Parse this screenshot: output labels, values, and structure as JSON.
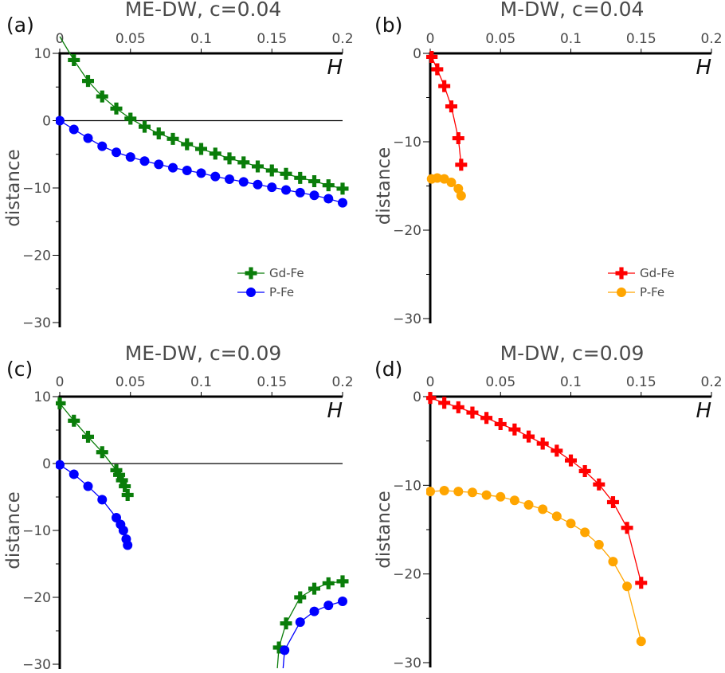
{
  "chart_data": [
    {
      "panel_label": "(a)",
      "title": "ME-DW, c=0.04",
      "type": "line",
      "xlabel": "H",
      "ylabel": "distance",
      "xlim": [
        0,
        0.2
      ],
      "ylim": [
        -30,
        10
      ],
      "xticks": [
        "0",
        "0.05",
        "0.1",
        "0.15",
        "0.2"
      ],
      "xtick_values": [
        0,
        0.05,
        0.1,
        0.15,
        0.2
      ],
      "yticks": [
        "10",
        "0",
        "−10",
        "−20",
        "−30"
      ],
      "ytick_values": [
        10,
        0,
        -10,
        -20,
        -30
      ],
      "zero_line": true,
      "legend_position": "lower-right",
      "series": [
        {
          "name": "Gd-Fe",
          "color": "#0a7d0a",
          "marker": "cross",
          "line_start": [
            0,
            12.5
          ],
          "x": [
            0.01,
            0.02,
            0.03,
            0.04,
            0.05,
            0.06,
            0.07,
            0.08,
            0.09,
            0.1,
            0.11,
            0.12,
            0.13,
            0.14,
            0.15,
            0.16,
            0.17,
            0.18,
            0.19,
            0.2
          ],
          "y": [
            9.0,
            5.9,
            3.6,
            1.8,
            0.3,
            -0.9,
            -1.9,
            -2.7,
            -3.5,
            -4.2,
            -4.9,
            -5.6,
            -6.2,
            -6.8,
            -7.4,
            -7.9,
            -8.5,
            -9.0,
            -9.6,
            -10.1
          ]
        },
        {
          "name": "P-Fe",
          "color": "#0000ff",
          "marker": "circle",
          "x": [
            0,
            0.01,
            0.02,
            0.03,
            0.04,
            0.05,
            0.06,
            0.07,
            0.08,
            0.09,
            0.1,
            0.11,
            0.12,
            0.13,
            0.14,
            0.15,
            0.16,
            0.17,
            0.18,
            0.19,
            0.2
          ],
          "y": [
            0,
            -1.3,
            -2.6,
            -3.8,
            -4.7,
            -5.4,
            -6.0,
            -6.5,
            -7.0,
            -7.4,
            -7.8,
            -8.3,
            -8.7,
            -9.1,
            -9.5,
            -9.9,
            -10.3,
            -10.7,
            -11.1,
            -11.6,
            -12.2
          ]
        }
      ]
    },
    {
      "panel_label": "(b)",
      "title": "M-DW, c=0.04",
      "type": "line",
      "xlabel": "H",
      "ylabel": "distance",
      "xlim": [
        0,
        0.2
      ],
      "ylim": [
        -30,
        0
      ],
      "xticks": [
        "0",
        "0.05",
        "0.1",
        "0.15",
        "0.2"
      ],
      "xtick_values": [
        0,
        0.05,
        0.1,
        0.15,
        0.2
      ],
      "yticks": [
        "0",
        "−10",
        "−20",
        "−30"
      ],
      "ytick_values": [
        0,
        -10,
        -20,
        -30
      ],
      "zero_line": false,
      "legend_position": "lower-right",
      "series": [
        {
          "name": "Gd-Fe",
          "color": "#ff0000",
          "marker": "cross",
          "x": [
            0.001,
            0.005,
            0.01,
            0.015,
            0.02,
            0.022
          ],
          "y": [
            -0.4,
            -1.8,
            -3.7,
            -6.0,
            -9.6,
            -12.6
          ]
        },
        {
          "name": "P-Fe",
          "color": "#ffa500",
          "marker": "circle",
          "x": [
            0.001,
            0.005,
            0.01,
            0.015,
            0.02,
            0.022
          ],
          "y": [
            -14.2,
            -14.1,
            -14.2,
            -14.6,
            -15.3,
            -16.1
          ]
        }
      ]
    },
    {
      "panel_label": "(c)",
      "title": "ME-DW, c=0.09",
      "type": "line",
      "xlabel": "H",
      "ylabel": "distance",
      "xlim": [
        0,
        0.2
      ],
      "ylim": [
        -30,
        10
      ],
      "xticks": [
        "0",
        "0.05",
        "0.1",
        "0.15",
        "0.2"
      ],
      "xtick_values": [
        0,
        0.05,
        0.1,
        0.15,
        0.2
      ],
      "yticks": [
        "10",
        "0",
        "−10",
        "−20",
        "−30"
      ],
      "ytick_values": [
        10,
        0,
        -10,
        -20,
        -30
      ],
      "zero_line": true,
      "series": [
        {
          "color": "#0a7d0a",
          "marker": "cross",
          "segments": [
            {
              "x": [
                0,
                0.01,
                0.02,
                0.03,
                0.04,
                0.042,
                0.044,
                0.046,
                0.048
              ],
              "y": [
                9.0,
                6.4,
                4.0,
                1.7,
                -1.0,
                -1.7,
                -2.5,
                -3.4,
                -4.7
              ]
            },
            {
              "line_start": [
                0.153,
                -33
              ],
              "x": [
                0.155,
                0.16,
                0.17,
                0.18,
                0.19,
                0.2
              ],
              "y": [
                -27.5,
                -23.9,
                -20.0,
                -18.7,
                -17.9,
                -17.6
              ]
            }
          ]
        },
        {
          "color": "#0000ff",
          "marker": "circle",
          "segments": [
            {
              "x": [
                0,
                0.01,
                0.02,
                0.03,
                0.04,
                0.043,
                0.045,
                0.047,
                0.048
              ],
              "y": [
                -0.2,
                -1.6,
                -3.4,
                -5.4,
                -8.1,
                -9.1,
                -10.0,
                -11.3,
                -12.2
              ]
            },
            {
              "line_start": [
                0.157,
                -33
              ],
              "x": [
                0.159,
                0.17,
                0.18,
                0.19,
                0.2
              ],
              "y": [
                -27.9,
                -23.7,
                -22.1,
                -21.2,
                -20.6
              ]
            }
          ]
        }
      ]
    },
    {
      "panel_label": "(d)",
      "title": "M-DW, c=0.09",
      "type": "line",
      "xlabel": "H",
      "ylabel": "distance",
      "xlim": [
        0,
        0.2
      ],
      "ylim": [
        -30,
        0
      ],
      "xticks": [
        "0",
        "0.05",
        "0.1",
        "0.15",
        "0.2"
      ],
      "xtick_values": [
        0,
        0.05,
        0.1,
        0.15,
        0.2
      ],
      "yticks": [
        "0",
        "−10",
        "−20",
        "−30"
      ],
      "ytick_values": [
        0,
        -10,
        -20,
        -30
      ],
      "zero_line": false,
      "series": [
        {
          "color": "#ff0000",
          "marker": "cross",
          "x": [
            0,
            0.01,
            0.02,
            0.03,
            0.04,
            0.05,
            0.06,
            0.07,
            0.08,
            0.09,
            0.1,
            0.11,
            0.12,
            0.13,
            0.14,
            0.15
          ],
          "y": [
            -0.15,
            -0.7,
            -1.2,
            -1.8,
            -2.4,
            -3.1,
            -3.7,
            -4.5,
            -5.3,
            -6.1,
            -7.2,
            -8.4,
            -9.9,
            -11.9,
            -14.8,
            -21.0
          ]
        },
        {
          "color": "#ffa500",
          "marker": "circle",
          "x": [
            0,
            0.01,
            0.02,
            0.03,
            0.04,
            0.05,
            0.06,
            0.07,
            0.08,
            0.09,
            0.1,
            0.11,
            0.12,
            0.13,
            0.14,
            0.15
          ],
          "y": [
            -10.7,
            -10.6,
            -10.7,
            -10.8,
            -11.1,
            -11.3,
            -11.7,
            -12.2,
            -12.7,
            -13.5,
            -14.3,
            -15.3,
            -16.7,
            -18.6,
            -21.4,
            -27.6
          ]
        }
      ]
    }
  ]
}
